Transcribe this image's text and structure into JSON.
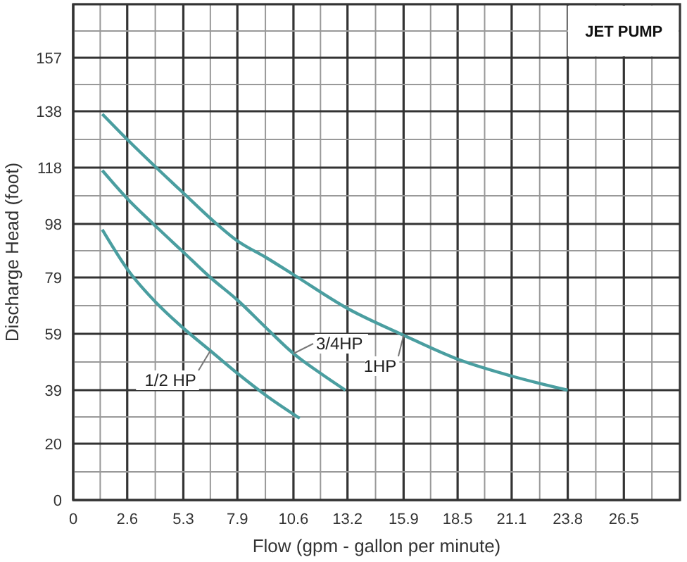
{
  "chart_data": {
    "type": "line",
    "title": "JET PUMP",
    "xlabel": "Flow (gpm - gallon per minute)",
    "ylabel": "Discharge Head (foot)",
    "xlim": [
      0,
      29.2
    ],
    "ylim": [
      0,
      176
    ],
    "xticks": [
      0,
      {
        "value": 1.3,
        "label": null
      },
      2.6,
      {
        "value": 3.95,
        "label": null
      },
      5.3,
      {
        "value": 6.6,
        "label": null
      },
      7.9,
      {
        "value": 9.25,
        "label": null
      },
      10.6,
      {
        "value": 11.9,
        "label": null
      },
      13.2,
      {
        "value": 14.55,
        "label": null
      },
      15.9,
      {
        "value": 17.2,
        "label": null
      },
      18.5,
      {
        "value": 19.8,
        "label": null
      },
      21.1,
      {
        "value": 22.45,
        "label": null
      },
      23.8,
      {
        "value": 25.15,
        "label": null
      },
      26.5,
      {
        "value": 27.85,
        "label": null
      }
    ],
    "yticks": [
      0,
      {
        "value": 10,
        "label": null
      },
      20,
      {
        "value": 29.5,
        "label": null
      },
      39,
      {
        "value": 49,
        "label": null
      },
      59,
      {
        "value": 69,
        "label": null
      },
      79,
      {
        "value": 88.5,
        "label": null
      },
      98,
      {
        "value": 108,
        "label": null
      },
      118,
      {
        "value": 128,
        "label": null
      },
      138,
      {
        "value": 147.5,
        "label": null
      },
      157,
      {
        "value": 166.5,
        "label": null
      }
    ],
    "grid": true,
    "marker": "none",
    "line_style": "solid",
    "series": [
      {
        "name": "1/2 HP",
        "color": "#4a9ea0",
        "x": [
          1.4,
          2.7,
          4.0,
          5.3,
          6.6,
          7.9,
          9.3,
          10.9
        ],
        "values": [
          96,
          81,
          70,
          61,
          53,
          45,
          37,
          29
        ]
      },
      {
        "name": "3/4HP",
        "color": "#4a9ea0",
        "x": [
          1.4,
          2.6,
          4.0,
          5.3,
          6.6,
          7.9,
          9.3,
          10.6,
          11.9,
          13.1
        ],
        "values": [
          117,
          107,
          97,
          88,
          79,
          71,
          61,
          52,
          45,
          39
        ]
      },
      {
        "name": "1HP",
        "color": "#4a9ea0",
        "x": [
          1.4,
          2.6,
          4.0,
          5.3,
          6.6,
          7.9,
          9.3,
          10.6,
          13.2,
          15.9,
          18.5,
          21.1,
          23.8
        ],
        "values": [
          137,
          128,
          118,
          109,
          100,
          92,
          86,
          80,
          68,
          58.5,
          50,
          44,
          39
        ]
      }
    ]
  }
}
